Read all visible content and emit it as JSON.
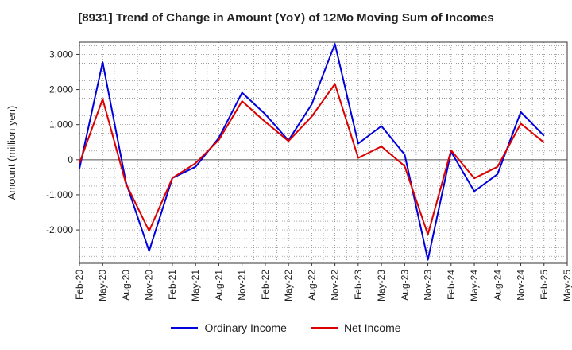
{
  "chart_data": {
    "type": "line",
    "title": "[8931]  Trend of Change in Amount (YoY) of 12Mo Moving Sum of Incomes",
    "ylabel": "Amount (million yen)",
    "xlabel": "",
    "ylim": [
      -2950,
      3350
    ],
    "yticks": [
      -2000,
      -1000,
      0,
      1000,
      2000,
      3000
    ],
    "ytick_labels": [
      "-2,000",
      "-1,000",
      "0",
      "1,000",
      "2,000",
      "3,000"
    ],
    "categories": [
      "Feb-20",
      "May-20",
      "Aug-20",
      "Nov-20",
      "Feb-21",
      "May-21",
      "Aug-21",
      "Nov-21",
      "Feb-22",
      "May-22",
      "Aug-22",
      "Nov-22",
      "Feb-23",
      "May-23",
      "Aug-23",
      "Nov-23",
      "Feb-24",
      "May-24",
      "Aug-24",
      "Nov-24",
      "Feb-25",
      "May-25"
    ],
    "grid": true,
    "legend_position": "bottom",
    "series": [
      {
        "name": "Ordinary Income",
        "color": "#0000dd",
        "values": [
          -250,
          2780,
          -640,
          -2600,
          -520,
          -200,
          620,
          1910,
          1300,
          550,
          1580,
          3300,
          460,
          960,
          150,
          -2850,
          230,
          -900,
          -410,
          1360,
          680,
          null
        ]
      },
      {
        "name": "Net Income",
        "color": "#dd0000",
        "values": [
          -100,
          1730,
          -680,
          -2030,
          -520,
          -100,
          560,
          1670,
          1080,
          530,
          1230,
          2160,
          50,
          380,
          -180,
          -2130,
          270,
          -530,
          -200,
          1030,
          490,
          null
        ]
      }
    ]
  }
}
